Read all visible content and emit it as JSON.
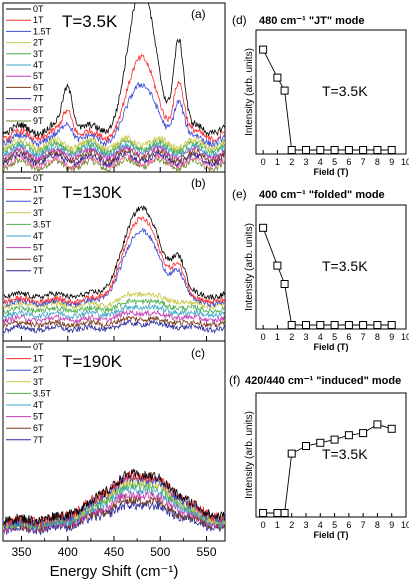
{
  "figure": {
    "x_axis_label": "Energy Shift (cm⁻¹)",
    "x_ticks": [
      "350",
      "400",
      "450",
      "500",
      "550"
    ],
    "right_x_ticks": [
      "0",
      "1",
      "2",
      "3",
      "4",
      "5",
      "6",
      "7",
      "8",
      "9",
      "10"
    ],
    "right_xlabel": "Field (T)",
    "right_ylabel": "Intensity (arb. units)"
  },
  "chart_data": [
    {
      "type": "line",
      "panel": "(a)",
      "temperature": "T=3.5K",
      "xlim": [
        330,
        570
      ],
      "legend": [
        "0T",
        "1T",
        "1.5T",
        "2T",
        "3T",
        "4T",
        "5T",
        "6T",
        "7T",
        "8T",
        "9T"
      ],
      "colors": [
        "#000000",
        "#ff2a2a",
        "#3b4bd8",
        "#c8c84a",
        "#4cae4c",
        "#3ca6c8",
        "#c33cb4",
        "#7a3a1a",
        "#2b2b9a",
        "#ff66aa",
        "#6b8a2a"
      ],
      "peaks": [
        {
          "x": 400,
          "width": 8,
          "amp": [
            0.3,
            0.18,
            0.13,
            0.0,
            0,
            0,
            0,
            0,
            0,
            0,
            0
          ]
        },
        {
          "x": 480,
          "width": 19,
          "amp": [
            1.0,
            0.55,
            0.4,
            0.02,
            0.02,
            0.02,
            0.02,
            0.02,
            0.02,
            0.02,
            0.02
          ]
        },
        {
          "x": 520,
          "width": 8,
          "amp": [
            0.62,
            0.38,
            0.28,
            0.0,
            0,
            0,
            0,
            0,
            0,
            0,
            0
          ]
        }
      ],
      "baseline": [
        0.22,
        0.18,
        0.15,
        0.12,
        0.1,
        0.08,
        0.06,
        0.04,
        0.02,
        0.0,
        -0.02
      ]
    },
    {
      "type": "line",
      "panel": "(b)",
      "temperature": "T=130K",
      "xlim": [
        330,
        570
      ],
      "legend": [
        "0T",
        "1T",
        "2T",
        "3T",
        "3.5T",
        "4T",
        "5T",
        "6T",
        "7T"
      ],
      "colors": [
        "#000000",
        "#ff2a2a",
        "#3b4bd8",
        "#c8c84a",
        "#4cae4c",
        "#3ca6c8",
        "#c33cb4",
        "#7a3a1a",
        "#2b2b9a"
      ],
      "peaks": [
        {
          "x": 480,
          "width": 26,
          "amp": [
            0.75,
            0.7,
            0.62,
            0.1,
            0.08,
            0.07,
            0.06,
            0.05,
            0.05
          ]
        },
        {
          "x": 520,
          "width": 10,
          "amp": [
            0.28,
            0.25,
            0.22,
            0.03,
            0.02,
            0.02,
            0.02,
            0.02,
            0.02
          ]
        }
      ],
      "baseline": [
        0.3,
        0.26,
        0.24,
        0.22,
        0.18,
        0.14,
        0.1,
        0.06,
        0.02
      ]
    },
    {
      "type": "line",
      "panel": "(c)",
      "temperature": "T=190K",
      "xlim": [
        330,
        570
      ],
      "legend": [
        "0T",
        "1T",
        "2T",
        "3T",
        "3.5T",
        "4T",
        "5T",
        "6T",
        "7T"
      ],
      "colors": [
        "#000000",
        "#ff2a2a",
        "#3b4bd8",
        "#c8c84a",
        "#4cae4c",
        "#3ca6c8",
        "#c33cb4",
        "#7a3a1a",
        "#2b2b9a"
      ],
      "peaks": [
        {
          "x": 478,
          "width": 55,
          "amp": [
            0.42,
            0.42,
            0.4,
            0.38,
            0.36,
            0.34,
            0.3,
            0.26,
            0.22
          ]
        }
      ],
      "baseline": [
        0.1,
        0.09,
        0.08,
        0.07,
        0.06,
        0.05,
        0.04,
        0.03,
        0.02
      ]
    },
    {
      "type": "scatter",
      "panel": "(d)",
      "title": "480 cm⁻¹ \"JT\" mode",
      "annotation": "T=3.5K",
      "xlabel": "Field (T)",
      "ylabel": "Intensity (arb. units)",
      "xlim": [
        -0.5,
        10
      ],
      "ylim": [
        0,
        1.0
      ],
      "x": [
        0,
        1,
        1.5,
        2,
        3,
        4,
        5,
        6,
        7,
        8,
        9
      ],
      "y": [
        0.93,
        0.67,
        0.55,
        0.0,
        0.0,
        0.0,
        0.0,
        0.0,
        0.0,
        0.0,
        0.0
      ]
    },
    {
      "type": "scatter",
      "panel": "(e)",
      "title": "400 cm⁻¹ \"folded\" mode",
      "annotation": "T=3.5K",
      "xlabel": "Field (T)",
      "ylabel": "Intensity (arb. units)",
      "xlim": [
        -0.5,
        10
      ],
      "ylim": [
        0,
        1.0
      ],
      "x": [
        0,
        1,
        1.5,
        2,
        3,
        4,
        5,
        6,
        7,
        8,
        9
      ],
      "y": [
        0.9,
        0.55,
        0.38,
        0.0,
        0.0,
        0.0,
        0.0,
        0.0,
        0.0,
        0.0,
        0.0
      ]
    },
    {
      "type": "scatter",
      "panel": "(f)",
      "title": "420/440 cm⁻¹ \"induced\" mode",
      "annotation": "T=3.5K",
      "xlabel": "Field (T)",
      "ylabel": "Intensity (arb. units)",
      "xlim": [
        -0.5,
        10
      ],
      "ylim": [
        0,
        1.0
      ],
      "x": [
        0,
        1,
        1.5,
        2,
        3,
        4,
        5,
        6,
        7,
        8,
        9
      ],
      "y": [
        0.0,
        0.0,
        0.0,
        0.55,
        0.62,
        0.65,
        0.68,
        0.72,
        0.74,
        0.82,
        0.78
      ]
    }
  ]
}
